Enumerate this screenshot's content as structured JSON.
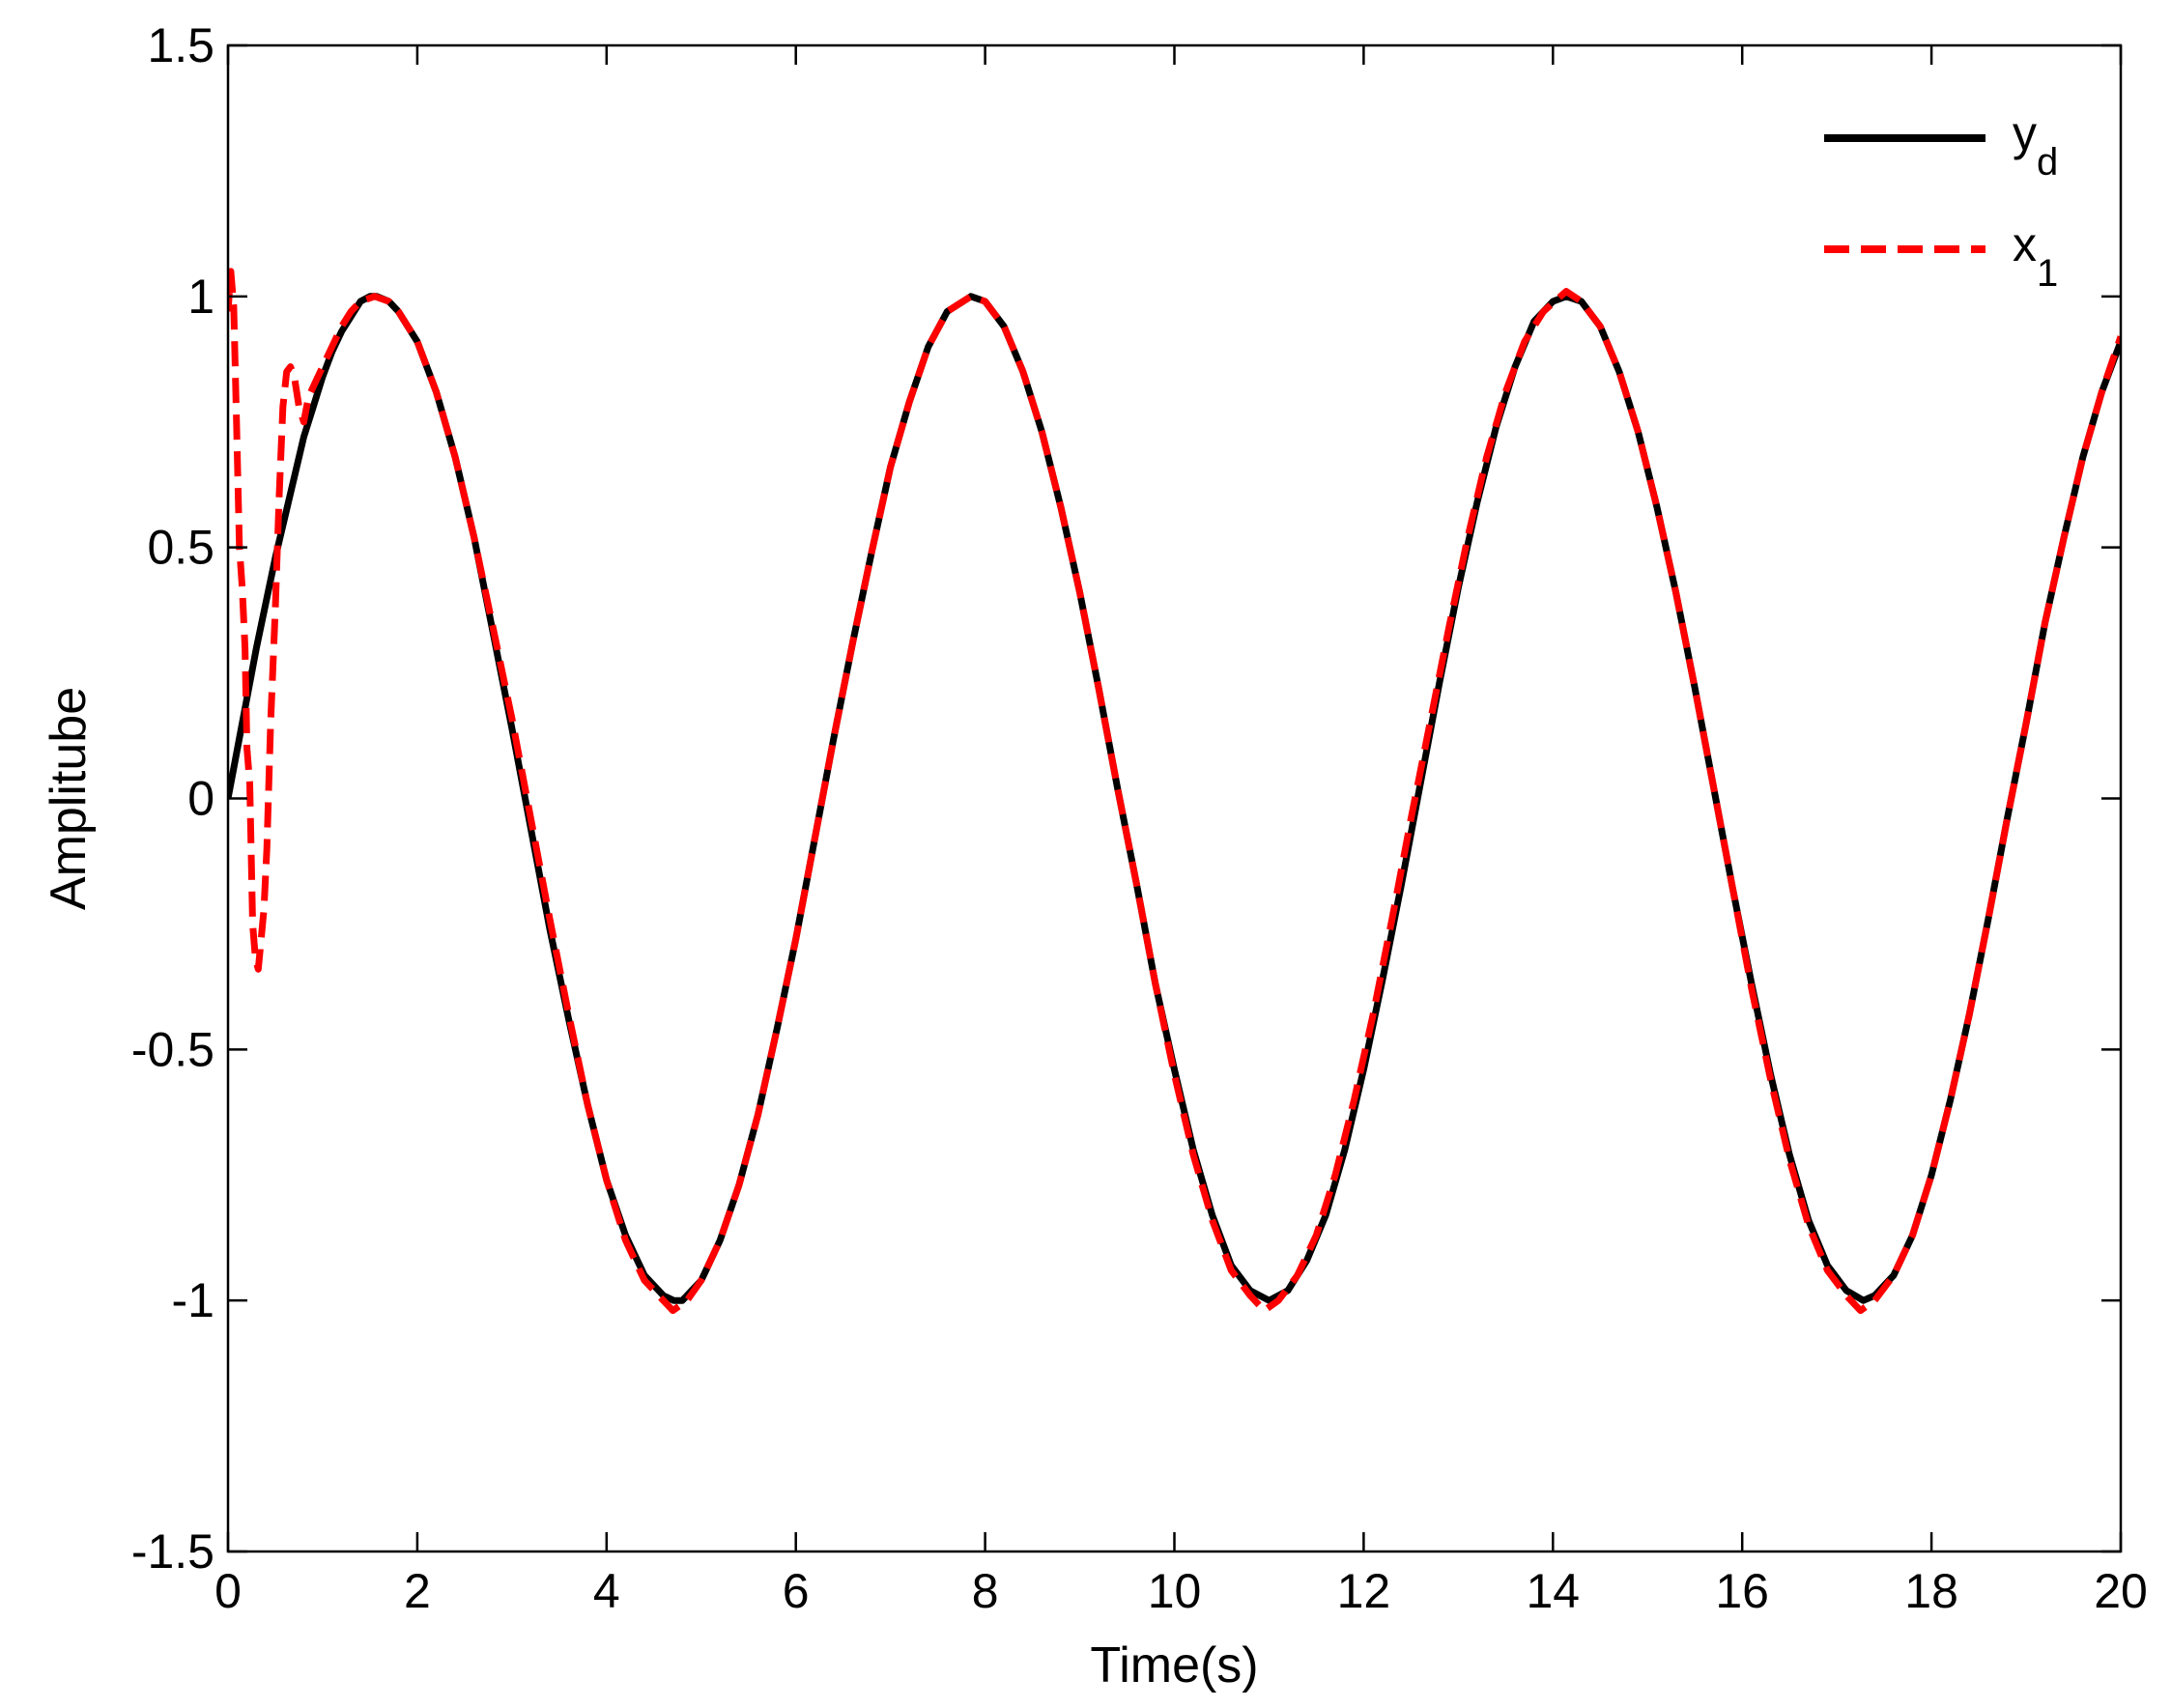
{
  "chart_data": {
    "type": "line",
    "title": "",
    "xlabel": "Time(s)",
    "ylabel": "Amplitube",
    "xlim": [
      0,
      20
    ],
    "ylim": [
      -1.5,
      1.5
    ],
    "xticks": [
      0,
      2,
      4,
      6,
      8,
      10,
      12,
      14,
      16,
      18,
      20
    ],
    "yticks": [
      -1.5,
      -1,
      -0.5,
      0,
      0.5,
      1,
      1.5
    ],
    "xtick_labels": [
      "0",
      "2",
      "4",
      "6",
      "8",
      "10",
      "12",
      "14",
      "16",
      "18",
      "20"
    ],
    "ytick_labels": [
      "-1.5",
      "-1",
      "-0.5",
      "0",
      "0.5",
      "1",
      "1.5"
    ],
    "grid": false,
    "legend_position": "top-right",
    "series": [
      {
        "name": "yd",
        "legend_main": "y",
        "legend_sub": "d",
        "color": "#000000",
        "style": "solid",
        "points": [
          [
            0.0,
            0.0
          ],
          [
            0.05,
            0.05
          ],
          [
            0.1,
            0.1
          ],
          [
            0.2,
            0.2
          ],
          [
            0.3,
            0.3
          ],
          [
            0.4,
            0.39
          ],
          [
            0.5,
            0.48
          ],
          [
            0.6,
            0.56
          ],
          [
            0.7,
            0.64
          ],
          [
            0.8,
            0.72
          ],
          [
            0.9,
            0.78
          ],
          [
            1.0,
            0.84
          ],
          [
            1.1,
            0.89
          ],
          [
            1.2,
            0.93
          ],
          [
            1.3,
            0.96
          ],
          [
            1.4,
            0.99
          ],
          [
            1.5,
            1.0
          ],
          [
            1.57,
            1.0
          ],
          [
            1.7,
            0.99
          ],
          [
            1.8,
            0.97
          ],
          [
            2.0,
            0.91
          ],
          [
            2.2,
            0.81
          ],
          [
            2.4,
            0.68
          ],
          [
            2.6,
            0.52
          ],
          [
            2.8,
            0.33
          ],
          [
            3.0,
            0.14
          ],
          [
            3.2,
            -0.06
          ],
          [
            3.4,
            -0.26
          ],
          [
            3.6,
            -0.44
          ],
          [
            3.8,
            -0.61
          ],
          [
            4.0,
            -0.76
          ],
          [
            4.2,
            -0.87
          ],
          [
            4.4,
            -0.95
          ],
          [
            4.6,
            -0.99
          ],
          [
            4.71,
            -1.0
          ],
          [
            4.8,
            -1.0
          ],
          [
            5.0,
            -0.96
          ],
          [
            5.2,
            -0.88
          ],
          [
            5.4,
            -0.77
          ],
          [
            5.6,
            -0.63
          ],
          [
            5.8,
            -0.46
          ],
          [
            6.0,
            -0.28
          ],
          [
            6.2,
            -0.08
          ],
          [
            6.4,
            0.12
          ],
          [
            6.6,
            0.31
          ],
          [
            6.8,
            0.49
          ],
          [
            7.0,
            0.66
          ],
          [
            7.2,
            0.79
          ],
          [
            7.4,
            0.9
          ],
          [
            7.6,
            0.97
          ],
          [
            7.85,
            1.0
          ],
          [
            8.0,
            0.99
          ],
          [
            8.2,
            0.94
          ],
          [
            8.4,
            0.85
          ],
          [
            8.6,
            0.73
          ],
          [
            8.8,
            0.58
          ],
          [
            9.0,
            0.41
          ],
          [
            9.2,
            0.22
          ],
          [
            9.4,
            0.02
          ],
          [
            9.6,
            -0.17
          ],
          [
            9.8,
            -0.37
          ],
          [
            10.0,
            -0.54
          ],
          [
            10.2,
            -0.7
          ],
          [
            10.4,
            -0.83
          ],
          [
            10.6,
            -0.93
          ],
          [
            10.8,
            -0.98
          ],
          [
            11.0,
            -1.0
          ],
          [
            11.2,
            -0.98
          ],
          [
            11.4,
            -0.92
          ],
          [
            11.6,
            -0.83
          ],
          [
            11.8,
            -0.7
          ],
          [
            12.0,
            -0.54
          ],
          [
            12.2,
            -0.36
          ],
          [
            12.4,
            -0.17
          ],
          [
            12.6,
            0.03
          ],
          [
            12.8,
            0.23
          ],
          [
            13.0,
            0.42
          ],
          [
            13.2,
            0.59
          ],
          [
            13.4,
            0.74
          ],
          [
            13.6,
            0.86
          ],
          [
            13.8,
            0.95
          ],
          [
            14.0,
            0.99
          ],
          [
            14.14,
            1.0
          ],
          [
            14.3,
            0.99
          ],
          [
            14.5,
            0.94
          ],
          [
            14.7,
            0.85
          ],
          [
            14.9,
            0.73
          ],
          [
            15.1,
            0.58
          ],
          [
            15.3,
            0.41
          ],
          [
            15.5,
            0.22
          ],
          [
            15.7,
            0.02
          ],
          [
            15.9,
            -0.18
          ],
          [
            16.1,
            -0.37
          ],
          [
            16.3,
            -0.55
          ],
          [
            16.5,
            -0.71
          ],
          [
            16.7,
            -0.84
          ],
          [
            16.9,
            -0.93
          ],
          [
            17.1,
            -0.98
          ],
          [
            17.28,
            -1.0
          ],
          [
            17.4,
            -0.99
          ],
          [
            17.6,
            -0.95
          ],
          [
            17.8,
            -0.87
          ],
          [
            18.0,
            -0.75
          ],
          [
            18.2,
            -0.6
          ],
          [
            18.4,
            -0.43
          ],
          [
            18.6,
            -0.24
          ],
          [
            18.8,
            -0.04
          ],
          [
            19.0,
            0.15
          ],
          [
            19.2,
            0.35
          ],
          [
            19.4,
            0.52
          ],
          [
            19.6,
            0.68
          ],
          [
            19.8,
            0.81
          ],
          [
            20.0,
            0.91
          ]
        ]
      },
      {
        "name": "x1",
        "legend_main": "x",
        "legend_sub": "1",
        "color": "#ff0000",
        "style": "dashed",
        "points": [
          [
            0.0,
            0.97
          ],
          [
            0.03,
            1.05
          ],
          [
            0.06,
            0.98
          ],
          [
            0.09,
            0.75
          ],
          [
            0.12,
            0.5
          ],
          [
            0.15,
            0.42
          ],
          [
            0.18,
            0.3
          ],
          [
            0.2,
            0.1
          ],
          [
            0.23,
            0.03
          ],
          [
            0.26,
            -0.25
          ],
          [
            0.29,
            -0.32
          ],
          [
            0.32,
            -0.34
          ],
          [
            0.35,
            -0.28
          ],
          [
            0.38,
            -0.22
          ],
          [
            0.41,
            -0.1
          ],
          [
            0.45,
            0.15
          ],
          [
            0.5,
            0.38
          ],
          [
            0.54,
            0.6
          ],
          [
            0.58,
            0.78
          ],
          [
            0.62,
            0.85
          ],
          [
            0.66,
            0.86
          ],
          [
            0.7,
            0.84
          ],
          [
            0.75,
            0.78
          ],
          [
            0.8,
            0.75
          ],
          [
            0.85,
            0.8
          ],
          [
            0.9,
            0.82
          ],
          [
            1.0,
            0.86
          ],
          [
            1.1,
            0.9
          ],
          [
            1.2,
            0.94
          ],
          [
            1.3,
            0.97
          ],
          [
            1.4,
            0.99
          ],
          [
            1.55,
            1.0
          ],
          [
            1.7,
            0.99
          ],
          [
            1.8,
            0.97
          ],
          [
            2.0,
            0.91
          ],
          [
            2.2,
            0.81
          ],
          [
            2.4,
            0.68
          ],
          [
            2.6,
            0.52
          ],
          [
            2.8,
            0.34
          ],
          [
            3.0,
            0.16
          ],
          [
            3.2,
            -0.04
          ],
          [
            3.4,
            -0.24
          ],
          [
            3.6,
            -0.43
          ],
          [
            3.8,
            -0.61
          ],
          [
            4.0,
            -0.76
          ],
          [
            4.2,
            -0.88
          ],
          [
            4.4,
            -0.96
          ],
          [
            4.6,
            -1.0
          ],
          [
            4.7,
            -1.02
          ],
          [
            4.85,
            -1.0
          ],
          [
            5.0,
            -0.96
          ],
          [
            5.2,
            -0.88
          ],
          [
            5.4,
            -0.77
          ],
          [
            5.6,
            -0.63
          ],
          [
            5.8,
            -0.46
          ],
          [
            6.0,
            -0.28
          ],
          [
            6.2,
            -0.08
          ],
          [
            6.4,
            0.12
          ],
          [
            6.6,
            0.31
          ],
          [
            6.8,
            0.49
          ],
          [
            7.0,
            0.66
          ],
          [
            7.2,
            0.79
          ],
          [
            7.4,
            0.9
          ],
          [
            7.6,
            0.97
          ],
          [
            7.85,
            1.0
          ],
          [
            8.0,
            0.99
          ],
          [
            8.2,
            0.94
          ],
          [
            8.4,
            0.85
          ],
          [
            8.6,
            0.73
          ],
          [
            8.8,
            0.58
          ],
          [
            9.0,
            0.41
          ],
          [
            9.2,
            0.22
          ],
          [
            9.4,
            0.02
          ],
          [
            9.6,
            -0.17
          ],
          [
            9.8,
            -0.37
          ],
          [
            10.0,
            -0.55
          ],
          [
            10.2,
            -0.71
          ],
          [
            10.4,
            -0.84
          ],
          [
            10.6,
            -0.94
          ],
          [
            10.8,
            -0.99
          ],
          [
            10.95,
            -1.02
          ],
          [
            11.1,
            -1.0
          ],
          [
            11.3,
            -0.95
          ],
          [
            11.5,
            -0.87
          ],
          [
            11.7,
            -0.75
          ],
          [
            11.9,
            -0.6
          ],
          [
            12.1,
            -0.43
          ],
          [
            12.3,
            -0.24
          ],
          [
            12.5,
            -0.04
          ],
          [
            12.7,
            0.15
          ],
          [
            12.9,
            0.34
          ],
          [
            13.1,
            0.52
          ],
          [
            13.3,
            0.68
          ],
          [
            13.5,
            0.81
          ],
          [
            13.7,
            0.91
          ],
          [
            13.9,
            0.97
          ],
          [
            14.14,
            1.01
          ],
          [
            14.3,
            0.99
          ],
          [
            14.5,
            0.94
          ],
          [
            14.7,
            0.85
          ],
          [
            14.9,
            0.73
          ],
          [
            15.1,
            0.58
          ],
          [
            15.3,
            0.41
          ],
          [
            15.5,
            0.22
          ],
          [
            15.7,
            0.02
          ],
          [
            15.9,
            -0.18
          ],
          [
            16.1,
            -0.38
          ],
          [
            16.3,
            -0.56
          ],
          [
            16.5,
            -0.72
          ],
          [
            16.7,
            -0.85
          ],
          [
            16.9,
            -0.94
          ],
          [
            17.1,
            -0.99
          ],
          [
            17.25,
            -1.02
          ],
          [
            17.4,
            -1.0
          ],
          [
            17.6,
            -0.95
          ],
          [
            17.8,
            -0.87
          ],
          [
            18.0,
            -0.75
          ],
          [
            18.2,
            -0.6
          ],
          [
            18.4,
            -0.43
          ],
          [
            18.6,
            -0.24
          ],
          [
            18.8,
            -0.04
          ],
          [
            19.0,
            0.15
          ],
          [
            19.2,
            0.35
          ],
          [
            19.4,
            0.52
          ],
          [
            19.6,
            0.68
          ],
          [
            19.8,
            0.81
          ],
          [
            20.0,
            0.92
          ]
        ]
      }
    ]
  }
}
